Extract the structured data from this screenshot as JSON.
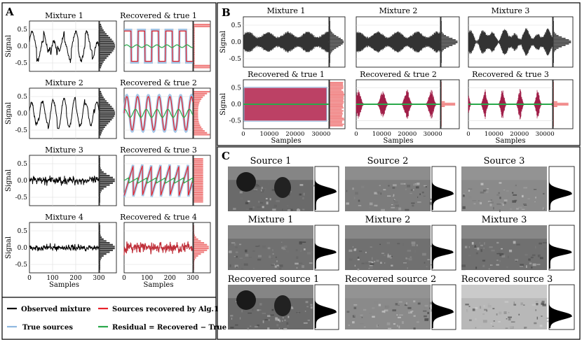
{
  "panels": {
    "A": {
      "letter": "A",
      "ylabel": "Signal",
      "xlabel": "Samples",
      "yticks": [
        "0.5",
        "0.0",
        "-0.5"
      ],
      "xticks": [
        "0",
        "100",
        "200",
        "300"
      ],
      "mixture_titles": [
        "Mixture 1",
        "Mixture 2",
        "Mixture 3",
        "Mixture 4"
      ],
      "recovered_titles": [
        "Recovered & true 1",
        "Recovered & true 2",
        "Recovered & true 3",
        "Recovered & true 4"
      ]
    },
    "B": {
      "letter": "B",
      "ylabel": "Signal",
      "xlabel": "Samples",
      "yticks": [
        "0.5",
        "0.0",
        "-0.5"
      ],
      "xticks": [
        "0",
        "10000",
        "20000",
        "30000"
      ],
      "mixture_titles": [
        "Mixture 1",
        "Mixture 2",
        "Mixture 3"
      ],
      "recovered_titles": [
        "Recovered & true  1",
        "Recovered & true  2",
        "Recovered & true  3"
      ]
    },
    "C": {
      "letter": "C",
      "row_titles": [
        [
          "Source 1",
          "Source 2",
          "Source 3"
        ],
        [
          "Mixture 1",
          "Mixture 2",
          "Mixture 3"
        ],
        [
          "Recovered source 1",
          "Recovered source 2",
          "Recovered source 3"
        ]
      ]
    }
  },
  "legend": {
    "observed": "Observed mixture",
    "recovered": "Sources recovered by Alg.1",
    "true": "True sources",
    "residual": "Residual = Recovered − True"
  },
  "colors": {
    "observed": "#000000",
    "recovered": "#e8222a",
    "true": "#8fb8e0",
    "residual": "#2aa84a",
    "hist_red": "#f08080",
    "hist_gray": "#404040"
  }
}
